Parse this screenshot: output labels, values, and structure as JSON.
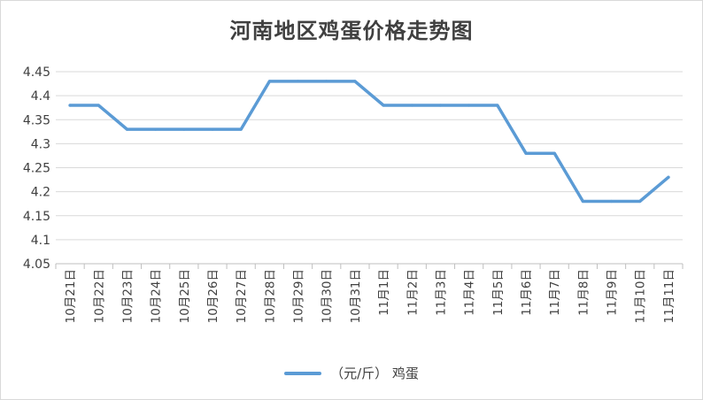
{
  "chart_data": {
    "type": "line",
    "title": "河南地区鸡蛋价格走势图",
    "categories": [
      "10月21日",
      "10月22日",
      "10月23日",
      "10月24日",
      "10月25日",
      "10月26日",
      "10月27日",
      "10月28日",
      "10月29日",
      "10月30日",
      "10月31日",
      "11月1日",
      "11月2日",
      "11月3日",
      "11月4日",
      "11月5日",
      "11月6日",
      "11月7日",
      "11月8日",
      "11月9日",
      "11月10日",
      "11月11日"
    ],
    "series": [
      {
        "name": "（元/斤） 鸡蛋",
        "values": [
          4.38,
          4.38,
          4.33,
          4.33,
          4.33,
          4.33,
          4.33,
          4.43,
          4.43,
          4.43,
          4.43,
          4.38,
          4.38,
          4.38,
          4.38,
          4.38,
          4.28,
          4.28,
          4.18,
          4.18,
          4.18,
          4.23
        ],
        "color": "#5b9bd5"
      }
    ],
    "yticks": [
      "4.05",
      "4.1",
      "4.15",
      "4.2",
      "4.25",
      "4.3",
      "4.35",
      "4.4",
      "4.45"
    ],
    "ylim": [
      4.05,
      4.45
    ],
    "xlabel": "",
    "ylabel": "",
    "grid": true,
    "legend_position": "bottom"
  }
}
